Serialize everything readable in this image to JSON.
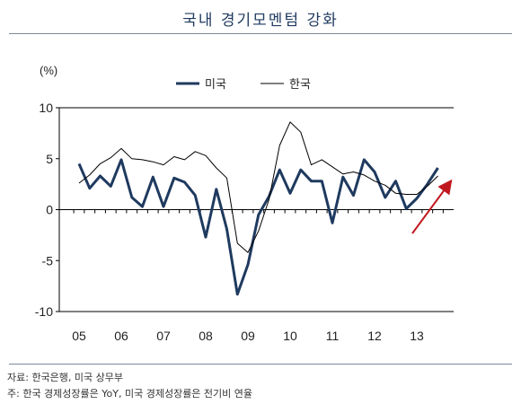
{
  "title": "국내 경기모멘텀 강화",
  "source": "자료: 한국은행, 미국 상무부",
  "note": "주: 한국 경제성장률은 YoY, 미국 경제성장률은 전기비 연율",
  "colors": {
    "us": "#1f3a5f",
    "korea": "#000000",
    "arrow": "#c0181e",
    "rule": "#7a8a9a"
  },
  "chart_data": {
    "type": "line",
    "ylabel": "(%)",
    "ylim": [
      -10,
      10
    ],
    "yticks": [
      10,
      5,
      0,
      -5,
      -10
    ],
    "xticks": [
      "05",
      "06",
      "07",
      "08",
      "09",
      "10",
      "11",
      "12",
      "13"
    ],
    "legend_position": "top-center",
    "x": [
      "05Q1",
      "05Q2",
      "05Q3",
      "05Q4",
      "06Q1",
      "06Q2",
      "06Q3",
      "06Q4",
      "07Q1",
      "07Q2",
      "07Q3",
      "07Q4",
      "08Q1",
      "08Q2",
      "08Q3",
      "08Q4",
      "09Q1",
      "09Q2",
      "09Q3",
      "09Q4",
      "10Q1",
      "10Q2",
      "10Q3",
      "10Q4",
      "11Q1",
      "11Q2",
      "11Q3",
      "11Q4",
      "12Q1",
      "12Q2",
      "12Q3",
      "12Q4",
      "13Q1",
      "13Q2",
      "13Q3"
    ],
    "series": [
      {
        "name": "미국",
        "values": [
          4.5,
          2.1,
          3.3,
          2.3,
          4.9,
          1.2,
          0.3,
          3.2,
          0.3,
          3.1,
          2.7,
          1.4,
          -2.7,
          2.0,
          -1.9,
          -8.3,
          -5.4,
          -0.5,
          1.3,
          3.9,
          1.6,
          3.9,
          2.8,
          2.8,
          -1.3,
          3.2,
          1.4,
          4.9,
          3.7,
          1.2,
          2.8,
          0.1,
          1.1,
          2.5,
          4.1
        ]
      },
      {
        "name": "한국",
        "values": [
          2.6,
          3.4,
          4.5,
          5.1,
          6.0,
          5.0,
          4.9,
          4.7,
          4.4,
          5.2,
          4.9,
          5.7,
          5.3,
          4.1,
          3.1,
          -3.3,
          -4.2,
          -2.1,
          1.0,
          6.3,
          8.6,
          7.6,
          4.4,
          4.9,
          4.2,
          3.5,
          3.7,
          3.4,
          2.8,
          2.4,
          1.6,
          1.5,
          1.5,
          2.3,
          3.3
        ]
      }
    ]
  }
}
